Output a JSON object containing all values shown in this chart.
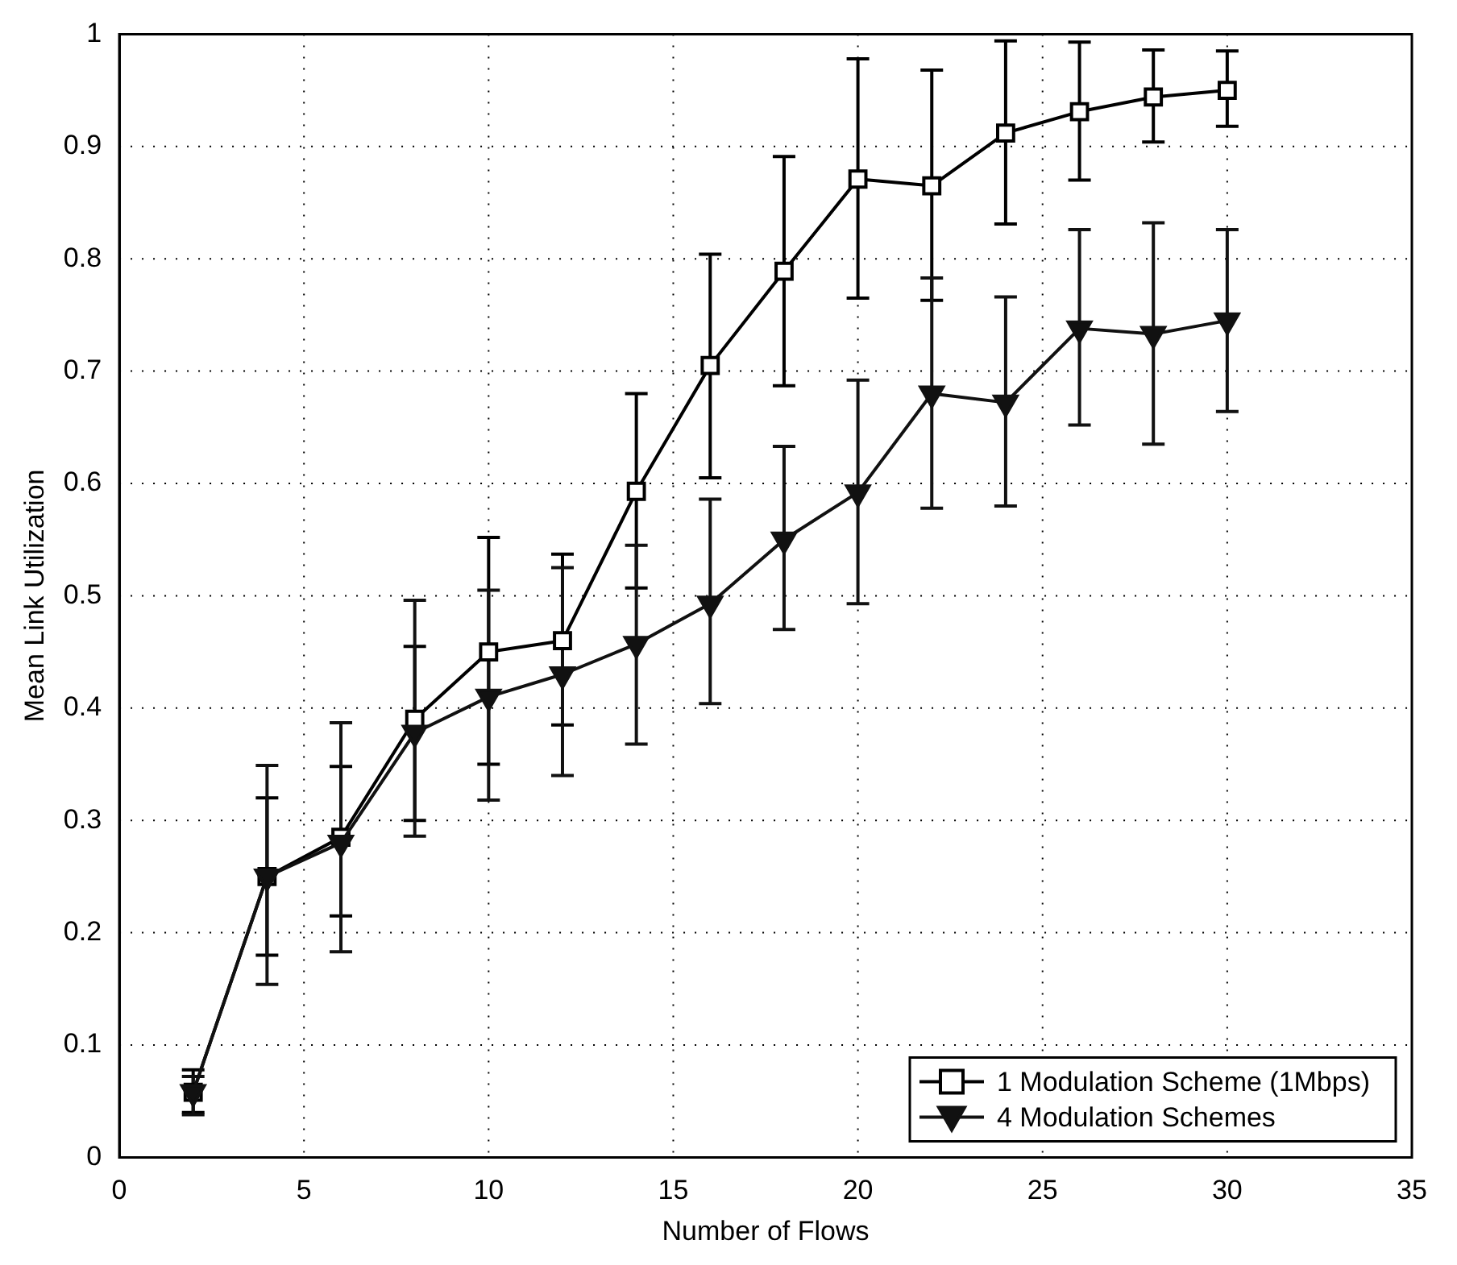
{
  "chart_data": {
    "type": "line",
    "xlabel": "Number of Flows",
    "ylabel": "Mean Link Utilization",
    "xlim": [
      0,
      35
    ],
    "xticks": [
      0,
      5,
      10,
      15,
      20,
      25,
      30,
      35
    ],
    "ylim": [
      0,
      1
    ],
    "yticks": [
      0,
      0.1,
      0.2,
      0.3,
      0.4,
      0.5,
      0.6,
      0.7,
      0.8,
      0.9,
      1
    ],
    "grid": true,
    "legend": "bottom right",
    "line_style": "solid",
    "series": [
      {
        "name": "1 Modulation Scheme (1Mbps)",
        "color": "#000000",
        "marker": "square",
        "x": [
          2,
          4,
          6,
          8,
          10,
          12,
          14,
          16,
          18,
          20,
          22,
          24,
          26,
          28,
          30
        ],
        "values": [
          0.058,
          0.25,
          0.285,
          0.39,
          0.45,
          0.46,
          0.593,
          0.705,
          0.789,
          0.871,
          0.865,
          0.912,
          0.931,
          0.944,
          0.95
        ],
        "errors": [
          [
            0.04,
            0.078
          ],
          [
            0.18,
            0.32
          ],
          [
            0.215,
            0.348
          ],
          [
            0.3,
            0.455
          ],
          [
            0.35,
            0.552
          ],
          [
            0.385,
            0.537
          ],
          [
            0.507,
            0.68
          ],
          [
            0.605,
            0.804
          ],
          [
            0.687,
            0.891
          ],
          [
            0.765,
            0.978
          ],
          [
            0.763,
            0.968
          ],
          [
            0.831,
            0.994
          ],
          [
            0.87,
            0.993
          ],
          [
            0.904,
            0.986
          ],
          [
            0.918,
            0.985
          ]
        ]
      },
      {
        "name": "4 Modulation Schemes",
        "color": "#111111",
        "marker": "triangle",
        "x": [
          2,
          4,
          6,
          8,
          10,
          12,
          14,
          16,
          18,
          20,
          22,
          24,
          26,
          28,
          30
        ],
        "values": [
          0.058,
          0.25,
          0.28,
          0.378,
          0.41,
          0.43,
          0.457,
          0.493,
          0.55,
          0.592,
          0.68,
          0.672,
          0.738,
          0.733,
          0.745
        ],
        "errors": [
          [
            0.038,
            0.072
          ],
          [
            0.154,
            0.349
          ],
          [
            0.183,
            0.387
          ],
          [
            0.286,
            0.496
          ],
          [
            0.318,
            0.505
          ],
          [
            0.34,
            0.525
          ],
          [
            0.368,
            0.545
          ],
          [
            0.404,
            0.586
          ],
          [
            0.47,
            0.633
          ],
          [
            0.493,
            0.692
          ],
          [
            0.578,
            0.783
          ],
          [
            0.58,
            0.766
          ],
          [
            0.652,
            0.826
          ],
          [
            0.635,
            0.832
          ],
          [
            0.664,
            0.826
          ]
        ]
      }
    ]
  }
}
